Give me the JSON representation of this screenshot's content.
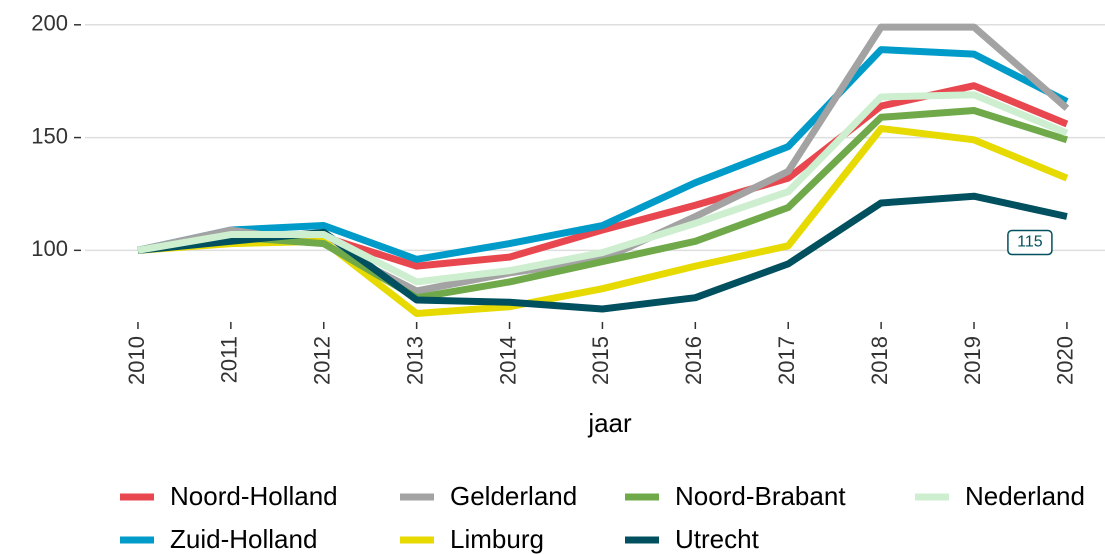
{
  "chart_data": {
    "type": "line",
    "x_label": "jaar",
    "x": [
      2010,
      2011,
      2012,
      2013,
      2014,
      2015,
      2016,
      2017,
      2018,
      2019,
      2020
    ],
    "xlim": [
      2009.43,
      2020.41
    ],
    "ylim": [
      70,
      211
    ],
    "yticks": [
      100,
      150,
      200
    ],
    "grid": true,
    "legend": "bottom",
    "series": [
      {
        "name": "Noord-Holland",
        "color": "#e8474f",
        "values": [
          100,
          108,
          106,
          93,
          97,
          109,
          120,
          132,
          164,
          173,
          156
        ]
      },
      {
        "name": "Zuid-Holland",
        "color": "#009bc9",
        "values": [
          100,
          109,
          111,
          96,
          103,
          111,
          130,
          146,
          189,
          187,
          166
        ]
      },
      {
        "name": "Gelderland",
        "color": "#a3a3a3",
        "values": [
          100,
          109,
          103,
          82,
          90,
          96,
          115,
          135,
          199,
          199,
          163
        ]
      },
      {
        "name": "Limburg",
        "color": "#e6da00",
        "values": [
          100,
          103,
          104,
          72,
          75,
          83,
          93,
          102,
          154,
          149,
          132
        ]
      },
      {
        "name": "Noord-Brabant",
        "color": "#6fa94a",
        "values": [
          100,
          106,
          103,
          79,
          86,
          95,
          104,
          119,
          159,
          162,
          149
        ]
      },
      {
        "name": "Utrecht",
        "color": "#00505f",
        "values": [
          100,
          104,
          108,
          78,
          77,
          74,
          79,
          94,
          121,
          124,
          115
        ],
        "value_labels": [
          null,
          null,
          null,
          null,
          null,
          null,
          null,
          null,
          null,
          null,
          "115"
        ]
      },
      {
        "name": "Nederland",
        "color": "#cdeecf",
        "values": [
          100,
          107,
          107,
          86,
          91,
          99,
          112,
          126,
          168,
          169,
          152
        ]
      }
    ]
  }
}
